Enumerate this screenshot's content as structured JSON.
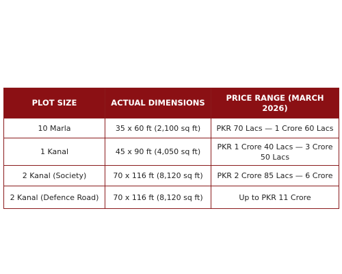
{
  "table": {
    "header": [
      "PLOT SIZE",
      "ACTUAL DIMENSIONS",
      "PRICE RANGE (MARCH 2026)"
    ],
    "rows": [
      [
        "10 Marla",
        "35 x 60 ft (2,100 sq ft)",
        "PKR 70 Lacs — 1 Crore 60 Lacs"
      ],
      [
        "1 Kanal",
        "45 x 90 ft (4,050 sq ft)",
        "PKR 1 Crore 40 Lacs — 3 Crore 50 Lacs"
      ],
      [
        "2 Kanal (Society)",
        "70 x 116 ft (8,120 sq ft)",
        "PKR 2 Crore 85 Lacs — 6 Crore"
      ],
      [
        "2 Kanal (Defence Road)",
        "70 x 116 ft (8,120 sq ft)",
        "Up to PKR 11 Crore"
      ]
    ]
  }
}
